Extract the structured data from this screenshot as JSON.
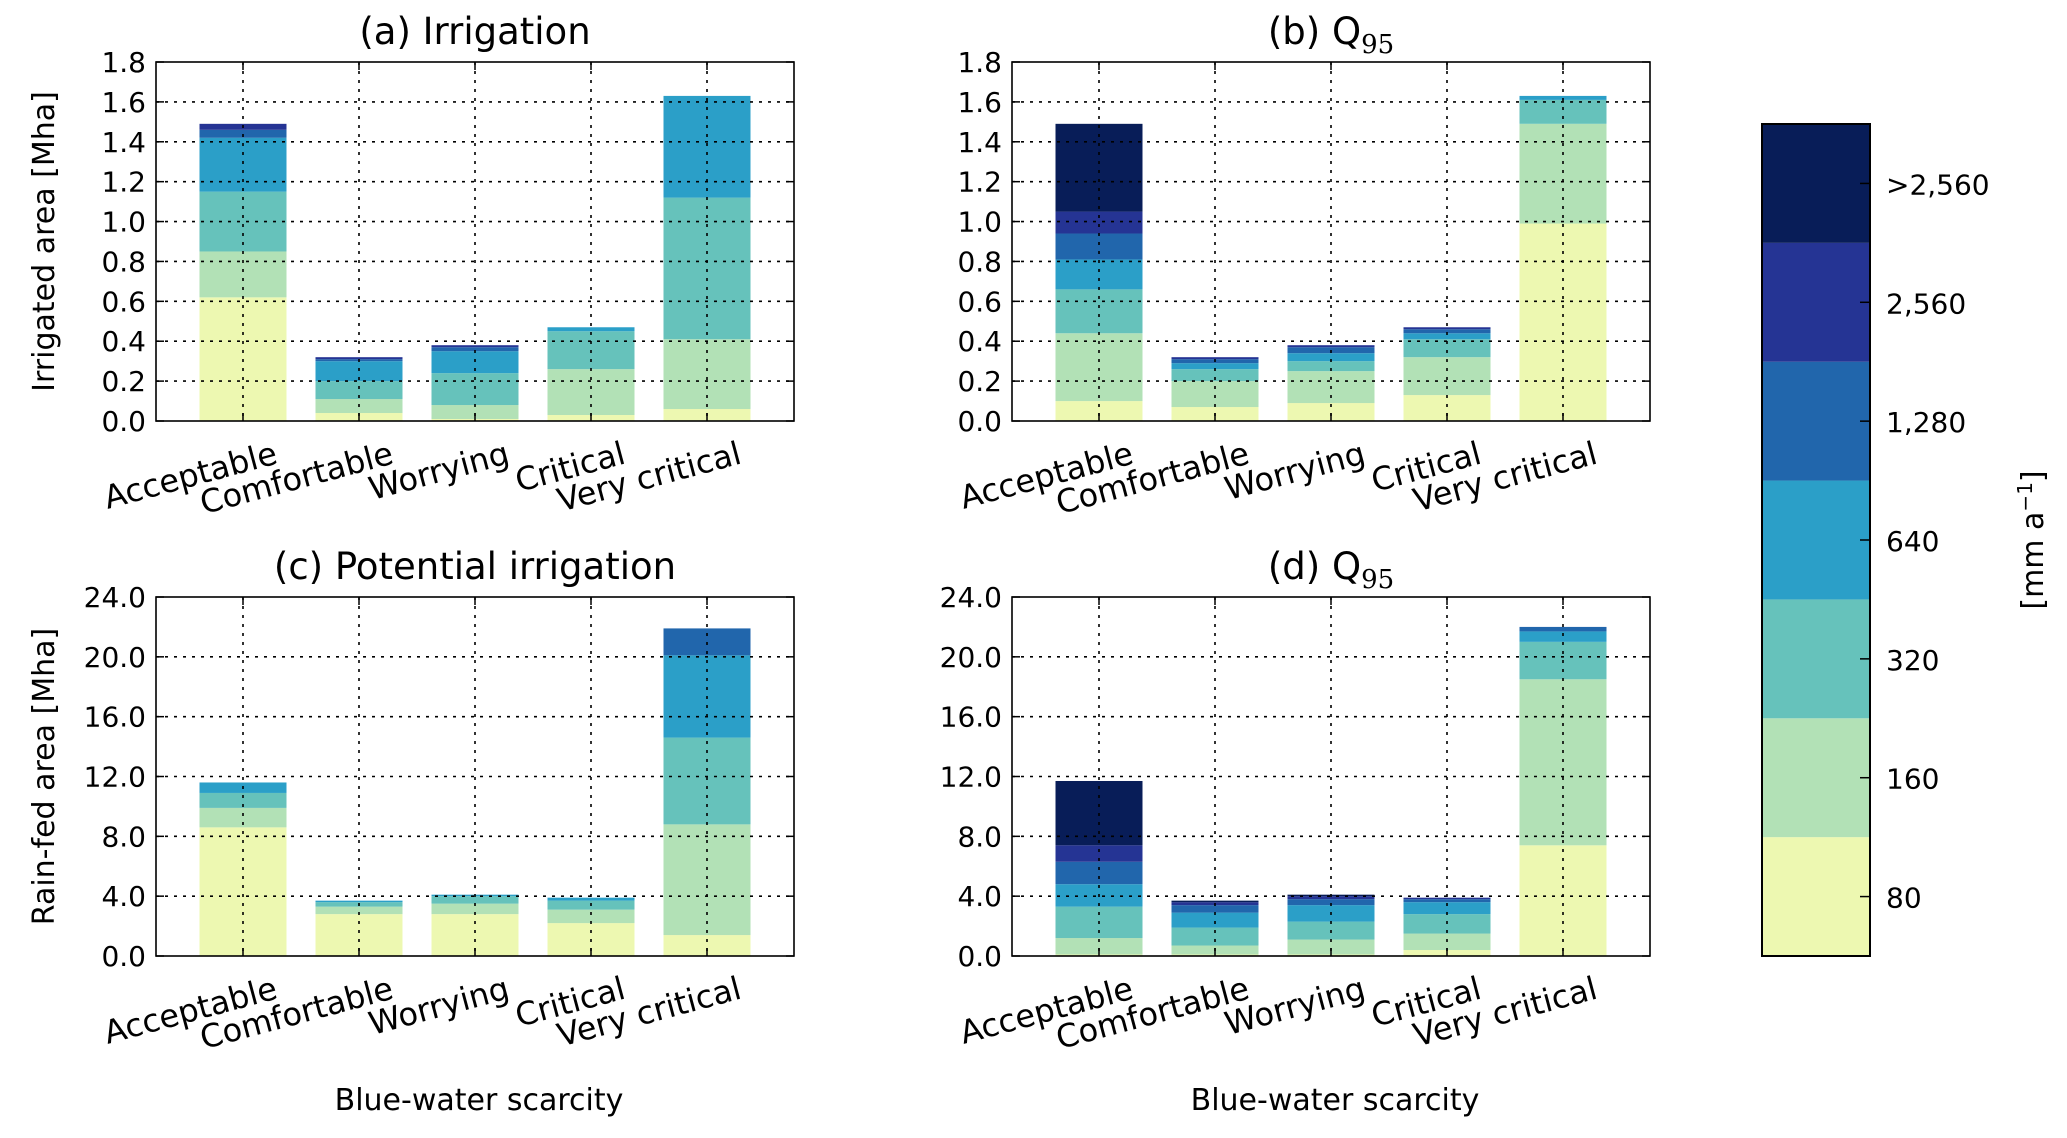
{
  "colors": [
    "#edf8b1",
    "#b2e1b6",
    "#66c2bb",
    "#2b9fc8",
    "#2166ac",
    "#253494",
    "#081d58"
  ],
  "colorbar": {
    "labels": [
      "80",
      "160",
      "320",
      "640",
      "1,280",
      "2,560",
      ">2,560"
    ],
    "unit_base": "[mm a",
    "unit_exp": "−1",
    "unit_close": "]"
  },
  "chart_data": [
    {
      "type": "bar",
      "stacked": true,
      "title": "(a) Irrigation",
      "title_sub": "",
      "ylabel": "Irrigated area [Mha]",
      "xlabel": "",
      "ylim": [
        0,
        1.8
      ],
      "yticks": [
        "0.0",
        "0.2",
        "0.4",
        "0.6",
        "0.8",
        "1.0",
        "1.2",
        "1.4",
        "1.6",
        "1.8"
      ],
      "categories": [
        "Acceptable",
        "Comfortable",
        "Worrying",
        "Critical",
        "Very critical"
      ],
      "stacks": [
        [
          0.62,
          0.23,
          0.3,
          0.27,
          0.04,
          0.03,
          0.0
        ],
        [
          0.04,
          0.07,
          0.09,
          0.1,
          0.01,
          0.01,
          0.0
        ],
        [
          0.01,
          0.07,
          0.16,
          0.11,
          0.02,
          0.01,
          0.0
        ],
        [
          0.03,
          0.23,
          0.19,
          0.02,
          0.0,
          0.0,
          0.0
        ],
        [
          0.06,
          0.35,
          0.71,
          0.51,
          0.0,
          0.0,
          0.0
        ]
      ]
    },
    {
      "type": "bar",
      "stacked": true,
      "title": "(b) Q",
      "title_sub": "95",
      "ylabel": "",
      "xlabel": "Blue-water scarcity",
      "ylim": [
        0,
        1.8
      ],
      "yticks": [
        "0.0",
        "0.2",
        "0.4",
        "0.6",
        "0.8",
        "1.0",
        "1.2",
        "1.4",
        "1.6",
        "1.8"
      ],
      "categories": [
        "Acceptable",
        "Comfortable",
        "Worrying",
        "Critical",
        "Very critical"
      ],
      "stacks": [
        [
          0.1,
          0.34,
          0.22,
          0.15,
          0.13,
          0.11,
          0.44
        ],
        [
          0.07,
          0.13,
          0.06,
          0.03,
          0.02,
          0.01,
          0.0
        ],
        [
          0.09,
          0.16,
          0.05,
          0.04,
          0.03,
          0.01,
          0.0
        ],
        [
          0.13,
          0.19,
          0.09,
          0.03,
          0.02,
          0.01,
          0.0
        ],
        [
          0.99,
          0.5,
          0.12,
          0.02,
          0.0,
          0.0,
          0.0
        ]
      ]
    },
    {
      "type": "bar",
      "stacked": true,
      "title": "(c) Potential irrigation",
      "title_sub": "",
      "ylabel": "Rain-fed area [Mha]",
      "xlabel": "Blue-water scarcity",
      "ylim": [
        0,
        24
      ],
      "yticks": [
        "0.0",
        "4.0",
        "8.0",
        "12.0",
        "16.0",
        "20.0",
        "24.0"
      ],
      "categories": [
        "Acceptable",
        "Comfortable",
        "Worrying",
        "Critical",
        "Very critical"
      ],
      "stacks": [
        [
          8.6,
          1.3,
          1.0,
          0.7,
          0.0,
          0.0,
          0.0
        ],
        [
          2.8,
          0.5,
          0.3,
          0.1,
          0.0,
          0.0,
          0.0
        ],
        [
          2.8,
          0.7,
          0.5,
          0.1,
          0.0,
          0.0,
          0.0
        ],
        [
          2.2,
          0.9,
          0.6,
          0.2,
          0.0,
          0.0,
          0.0
        ],
        [
          1.4,
          7.4,
          5.8,
          5.5,
          1.8,
          0.0,
          0.0
        ]
      ]
    },
    {
      "type": "bar",
      "stacked": true,
      "title": "(d) Q",
      "title_sub": "95",
      "ylabel": "",
      "xlabel": "Blue-water scarcity",
      "ylim": [
        0,
        24
      ],
      "yticks": [
        "0.0",
        "4.0",
        "8.0",
        "12.0",
        "16.0",
        "20.0",
        "24.0"
      ],
      "categories": [
        "Acceptable",
        "Comfortable",
        "Worrying",
        "Critical",
        "Very critical"
      ],
      "stacks": [
        [
          0.1,
          1.1,
          2.1,
          1.5,
          1.5,
          1.1,
          4.3
        ],
        [
          0.1,
          0.6,
          1.2,
          1.0,
          0.5,
          0.2,
          0.1
        ],
        [
          0.1,
          1.0,
          1.2,
          1.1,
          0.4,
          0.2,
          0.1
        ],
        [
          0.4,
          1.1,
          1.3,
          0.8,
          0.2,
          0.1,
          0.0
        ],
        [
          7.4,
          11.1,
          2.5,
          0.7,
          0.3,
          0.0,
          0.0
        ]
      ]
    }
  ]
}
